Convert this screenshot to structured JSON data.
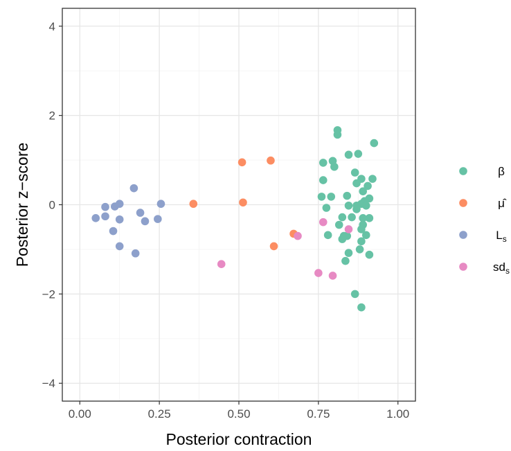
{
  "chart_data": {
    "type": "scatter",
    "xlabel": "Posterior contraction",
    "ylabel": "Posterior z−score",
    "xlim": [
      -0.055,
      1.055
    ],
    "ylim": [
      -4.4,
      4.4
    ],
    "x_ticks": [
      0.0,
      0.25,
      0.5,
      0.75,
      1.0
    ],
    "x_tick_labels": [
      "0.00",
      "0.25",
      "0.50",
      "0.75",
      "1.00"
    ],
    "y_ticks": [
      -4,
      -2,
      0,
      2,
      4
    ],
    "y_tick_labels": [
      "−4",
      "−2",
      "0",
      "2",
      "4"
    ],
    "grid": true,
    "legend_position": "right",
    "series": [
      {
        "name": "β",
        "color": "#66c2a5",
        "points": [
          [
            0.81,
            1.67
          ],
          [
            0.81,
            1.57
          ],
          [
            0.925,
            1.38
          ],
          [
            0.845,
            1.12
          ],
          [
            0.875,
            1.14
          ],
          [
            0.795,
            0.98
          ],
          [
            0.765,
            0.94
          ],
          [
            0.8,
            0.85
          ],
          [
            0.865,
            0.72
          ],
          [
            0.885,
            0.58
          ],
          [
            0.92,
            0.58
          ],
          [
            0.765,
            0.55
          ],
          [
            0.87,
            0.48
          ],
          [
            0.905,
            0.42
          ],
          [
            0.89,
            0.3
          ],
          [
            0.76,
            0.18
          ],
          [
            0.79,
            0.18
          ],
          [
            0.84,
            0.2
          ],
          [
            0.91,
            0.14
          ],
          [
            0.895,
            0.08
          ],
          [
            0.885,
            0.02
          ],
          [
            0.845,
            -0.02
          ],
          [
            0.87,
            -0.02
          ],
          [
            0.9,
            -0.02
          ],
          [
            0.775,
            -0.07
          ],
          [
            0.87,
            -0.1
          ],
          [
            0.855,
            -0.28
          ],
          [
            0.825,
            -0.28
          ],
          [
            0.89,
            -0.3
          ],
          [
            0.91,
            -0.3
          ],
          [
            0.815,
            -0.45
          ],
          [
            0.89,
            -0.45
          ],
          [
            0.885,
            -0.55
          ],
          [
            0.83,
            -0.7
          ],
          [
            0.84,
            -0.7
          ],
          [
            0.78,
            -0.68
          ],
          [
            0.9,
            -0.68
          ],
          [
            0.825,
            -0.77
          ],
          [
            0.885,
            -0.82
          ],
          [
            0.835,
            -1.26
          ],
          [
            0.88,
            -1.0
          ],
          [
            0.845,
            -1.08
          ],
          [
            0.91,
            -1.12
          ],
          [
            0.865,
            -2.0
          ],
          [
            0.885,
            -2.3
          ]
        ]
      },
      {
        "name": "μ̂",
        "color": "#fc8d62",
        "points": [
          [
            0.357,
            0.02
          ],
          [
            0.51,
            0.95
          ],
          [
            0.6,
            0.99
          ],
          [
            0.513,
            0.05
          ],
          [
            0.672,
            -0.65
          ],
          [
            0.61,
            -0.93
          ]
        ]
      },
      {
        "name": "L",
        "name_subscript": "s",
        "color": "#8da0cb",
        "points": [
          [
            0.17,
            0.37
          ],
          [
            0.08,
            -0.05
          ],
          [
            0.11,
            -0.04
          ],
          [
            0.125,
            0.02
          ],
          [
            0.255,
            0.02
          ],
          [
            0.19,
            -0.18
          ],
          [
            0.05,
            -0.3
          ],
          [
            0.08,
            -0.26
          ],
          [
            0.125,
            -0.33
          ],
          [
            0.205,
            -0.37
          ],
          [
            0.245,
            -0.32
          ],
          [
            0.105,
            -0.59
          ],
          [
            0.125,
            -0.93
          ],
          [
            0.175,
            -1.09
          ]
        ]
      },
      {
        "name": "sd",
        "name_subscript": "s",
        "color": "#e78ac3",
        "points": [
          [
            0.445,
            -1.33
          ],
          [
            0.685,
            -0.7
          ],
          [
            0.765,
            -0.39
          ],
          [
            0.845,
            -0.55
          ],
          [
            0.75,
            -1.53
          ],
          [
            0.795,
            -1.59
          ]
        ]
      }
    ]
  }
}
